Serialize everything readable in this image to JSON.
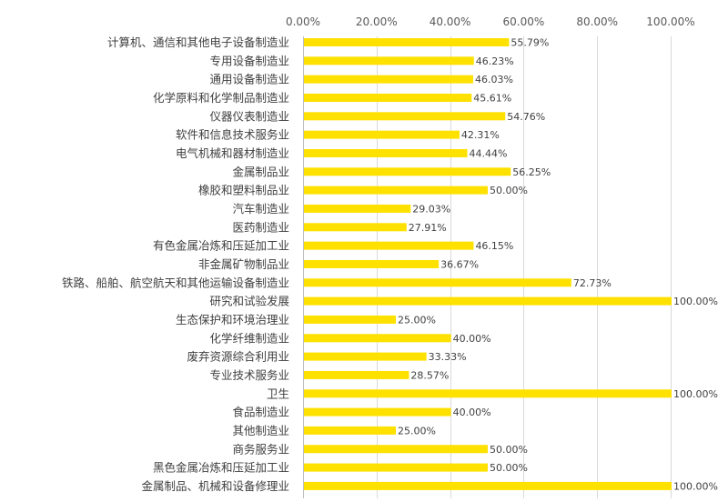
{
  "chart_data": {
    "type": "bar",
    "orientation": "horizontal",
    "categories": [
      "计算机、通信和其他电子设备制造业",
      "专用设备制造业",
      "通用设备制造业",
      "化学原料和化学制品制造业",
      "仪器仪表制造业",
      "软件和信息技术服务业",
      "电气机械和器材制造业",
      "金属制品业",
      "橡胶和塑料制品业",
      "汽车制造业",
      "医药制造业",
      "有色金属冶炼和压延加工业",
      "非金属矿物制品业",
      "铁路、船舶、航空航天和其他运输设备制造业",
      "研究和试验发展",
      "生态保护和环境治理业",
      "化学纤维制造业",
      "废弃资源综合利用业",
      "专业技术服务业",
      "卫生",
      "食品制造业",
      "其他制造业",
      "商务服务业",
      "黑色金属冶炼和压延加工业",
      "金属制品、机械和设备修理业"
    ],
    "values": [
      55.79,
      46.23,
      46.03,
      45.61,
      54.76,
      42.31,
      44.44,
      56.25,
      50.0,
      29.03,
      27.91,
      46.15,
      36.67,
      72.73,
      100.0,
      25.0,
      40.0,
      33.33,
      28.57,
      100.0,
      40.0,
      25.0,
      50.0,
      50.0,
      100.0
    ],
    "data_labels": [
      "55.79%",
      "46.23%",
      "46.03%",
      "45.61%",
      "54.76%",
      "42.31%",
      "44.44%",
      "56.25%",
      "50.00%",
      "29.03%",
      "27.91%",
      "46.15%",
      "36.67%",
      "72.73%",
      "100.00%",
      "25.00%",
      "40.00%",
      "33.33%",
      "28.57%",
      "100.00%",
      "40.00%",
      "25.00%",
      "50.00%",
      "50.00%",
      "100.00%"
    ],
    "xlim": [
      0,
      100
    ],
    "x_ticks": [
      0,
      20,
      40,
      60,
      80,
      100
    ],
    "x_tick_labels": [
      "0.00%",
      "20.00%",
      "40.00%",
      "60.00%",
      "80.00%",
      "100.00%"
    ],
    "x_axis_position": "top",
    "grid": true,
    "legend": "none",
    "title": "",
    "xlabel": "",
    "ylabel": "",
    "bar_color": "#ffe100",
    "grid_color": "#d9d9d9",
    "text_color": "#404040"
  }
}
